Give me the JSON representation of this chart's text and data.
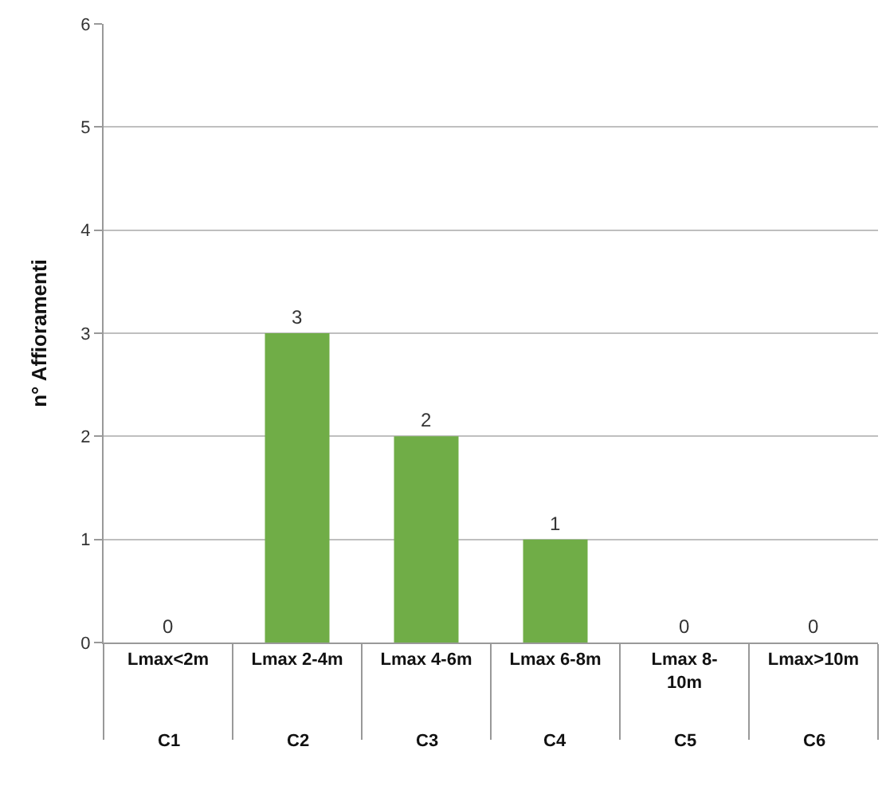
{
  "chart_data": {
    "type": "bar",
    "ylabel": "n° Affioramenti",
    "categories": [
      "Lmax<2m",
      "Lmax 2-4m",
      "Lmax 4-6m",
      "Lmax 6-8m",
      "Lmax 8-\n10m",
      "Lmax>10m"
    ],
    "values": [
      0,
      3,
      2,
      1,
      0,
      0
    ],
    "color": "#70ad47",
    "ylim": [
      0,
      6
    ],
    "yticks": [
      0,
      1,
      2,
      3,
      4,
      5,
      6
    ],
    "grid": "y",
    "data_labels": true,
    "annotations": [
      "C1",
      "C2",
      "C3",
      "C4",
      "C5",
      "C6"
    ]
  }
}
